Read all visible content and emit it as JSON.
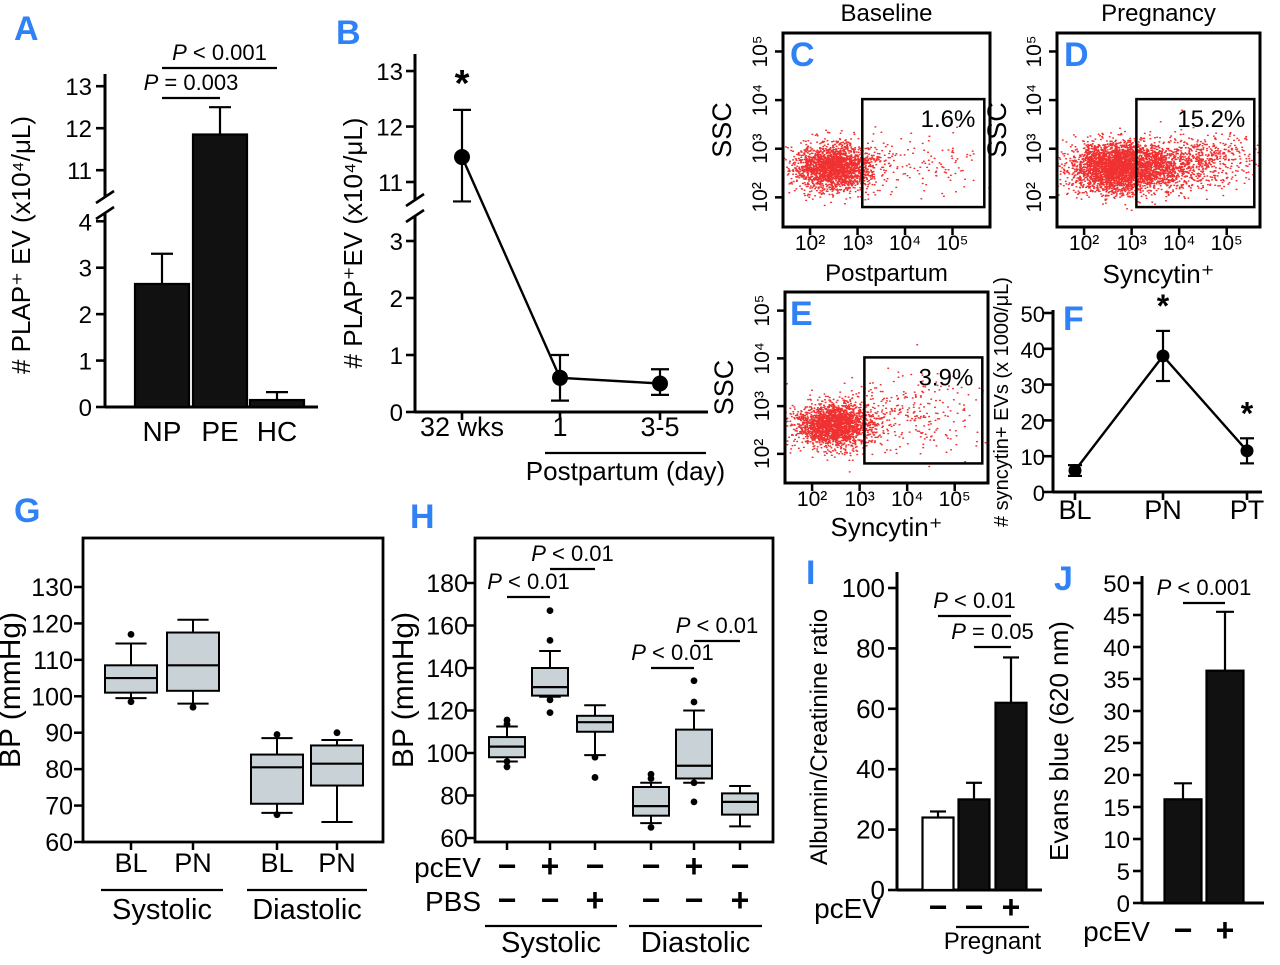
{
  "figure": {
    "background": "#ffffff",
    "accent_blue": "#2f82f5",
    "scatter_red": "#ee1515",
    "box_fill": "#c9d3d7",
    "ink": "#000000"
  },
  "chart_data": [
    {
      "id": "A",
      "panel_label": "A",
      "type": "bar",
      "ylabel": "# PLAP⁺ EV (x10⁴/μL)",
      "broken_y_axis": true,
      "y_ticks_lower": [
        0,
        1,
        2,
        3,
        4
      ],
      "y_ticks_upper": [
        11,
        12,
        13
      ],
      "categories": [
        "NP",
        "PE",
        "HC"
      ],
      "values": [
        2.65,
        11.85,
        0.15
      ],
      "errors_up": [
        0.65,
        0.65,
        0.17
      ],
      "bar_fills": [
        "#111111",
        "#111111",
        "#111111"
      ],
      "significance": [
        {
          "i": 0,
          "j": 2,
          "label": "P < 0.001"
        },
        {
          "i": 0,
          "j": 1,
          "label": "P = 0.003"
        }
      ]
    },
    {
      "id": "B",
      "panel_label": "B",
      "type": "line-broken",
      "ylabel": "# PLAP⁺EV (x10⁴/μL)",
      "broken_y_axis": true,
      "y_ticks_lower": [
        0,
        1,
        2,
        3
      ],
      "y_ticks_upper": [
        11,
        12,
        13
      ],
      "categories": [
        "32 wks",
        "1",
        "3-5"
      ],
      "values": [
        11.45,
        0.6,
        0.5
      ],
      "err_low": [
        0.8,
        0.4,
        0.2
      ],
      "err_high": [
        0.85,
        0.4,
        0.25
      ],
      "asterisks": [
        0
      ],
      "x_bracket": {
        "label": "Postpartum (day)",
        "from": 1,
        "to": 2
      }
    },
    {
      "id": "C",
      "panel_label": "C",
      "type": "flow",
      "title": "Baseline",
      "ylabel": "SSC",
      "xlabel": "",
      "x_ticks": [
        "10²",
        "10³",
        "10⁴",
        "10⁵"
      ],
      "y_ticks": [
        "10²",
        "10³",
        "10⁴",
        "10⁵"
      ],
      "gate_percent": "1.6%",
      "seed": 11,
      "clusters": [
        {
          "n": 2200,
          "mx": 2.5,
          "sx": 0.42,
          "my": 2.62,
          "sy": 0.24
        },
        {
          "n": 150,
          "mx": 4.3,
          "sx": 0.85,
          "my": 2.7,
          "sy": 0.3
        }
      ]
    },
    {
      "id": "D",
      "panel_label": "D",
      "type": "flow",
      "title": "Pregnancy",
      "ylabel": "SSC",
      "xlabel": "Syncytin⁺",
      "x_ticks": [
        "10²",
        "10³",
        "10⁴",
        "10⁵"
      ],
      "y_ticks": [
        "10²",
        "10³",
        "10⁴",
        "10⁵"
      ],
      "gate_percent": "15.2%",
      "seed": 22,
      "clusters": [
        {
          "n": 2000,
          "mx": 2.55,
          "sx": 0.42,
          "my": 2.6,
          "sy": 0.25
        },
        {
          "n": 1800,
          "mx": 3.25,
          "sx": 0.6,
          "my": 2.63,
          "sy": 0.26
        },
        {
          "n": 420,
          "mx": 4.6,
          "sx": 0.55,
          "my": 2.75,
          "sy": 0.3
        }
      ]
    },
    {
      "id": "E",
      "panel_label": "E",
      "type": "flow",
      "title": "Postpartum",
      "ylabel": "SSC",
      "xlabel": "Syncytin⁺",
      "x_ticks": [
        "10²",
        "10³",
        "10⁴",
        "10⁵"
      ],
      "y_ticks": [
        "10²",
        "10³",
        "10⁴",
        "10⁵"
      ],
      "gate_percent": "3.9%",
      "seed": 33,
      "clusters": [
        {
          "n": 2100,
          "mx": 2.45,
          "sx": 0.4,
          "my": 2.6,
          "sy": 0.23
        },
        {
          "n": 300,
          "mx": 3.9,
          "sx": 0.85,
          "my": 2.85,
          "sy": 0.4
        }
      ]
    },
    {
      "id": "F",
      "panel_label": "F",
      "type": "line",
      "ylabel": "# syncytin+ EVs (x 1000/μL)",
      "y_ticks": [
        0,
        10,
        20,
        30,
        40,
        50
      ],
      "categories": [
        "BL",
        "PN",
        "PT"
      ],
      "values": [
        6,
        38,
        11.5
      ],
      "err_low": [
        1.5,
        7,
        3.5
      ],
      "err_high": [
        1.5,
        7,
        3.5
      ],
      "asterisks": [
        1,
        2
      ]
    },
    {
      "id": "G",
      "panel_label": "G",
      "type": "box",
      "ylabel": "BP (mmHg)",
      "y_ticks": [
        60,
        70,
        80,
        90,
        100,
        110,
        120,
        130
      ],
      "boxes": [
        {
          "label": "BL",
          "whisker_low": 99.5,
          "q1": 101,
          "median": 105,
          "q3": 108.5,
          "whisker_high": 114.5,
          "outliers": [
            117,
            98.5
          ]
        },
        {
          "label": "PN",
          "whisker_low": 98,
          "q1": 101.5,
          "median": 108.5,
          "q3": 117.5,
          "whisker_high": 121,
          "outliers": [
            97
          ]
        },
        {
          "label": "BL",
          "whisker_low": 68,
          "q1": 70.5,
          "median": 80.5,
          "q3": 84,
          "whisker_high": 88.5,
          "outliers": [
            89.5,
            67.5
          ]
        },
        {
          "label": "PN",
          "whisker_low": 65.5,
          "q1": 75.5,
          "median": 81.5,
          "q3": 86.5,
          "whisker_high": 88,
          "outliers": [
            90
          ]
        }
      ],
      "groups": [
        {
          "label": "Systolic",
          "from": 0,
          "to": 1
        },
        {
          "label": "Diastolic",
          "from": 2,
          "to": 3
        }
      ]
    },
    {
      "id": "H",
      "panel_label": "H",
      "type": "box",
      "ylabel": "BP (mmHg)",
      "y_ticks": [
        60,
        80,
        100,
        120,
        140,
        160,
        180
      ],
      "boxes": [
        {
          "whisker_low": 96,
          "q1": 98,
          "median": 103,
          "q3": 107.5,
          "whisker_high": 112.5,
          "outliers": [
            115.5,
            113.5,
            96,
            93.5
          ]
        },
        {
          "whisker_low": 126.5,
          "q1": 127,
          "median": 131,
          "q3": 140,
          "whisker_high": 148,
          "outliers": [
            167,
            153,
            125,
            119
          ]
        },
        {
          "whisker_low": 99,
          "q1": 110,
          "median": 114.5,
          "q3": 117.5,
          "whisker_high": 122.5,
          "outliers": [
            98,
            88.5
          ]
        },
        {
          "whisker_low": 67,
          "q1": 70.5,
          "median": 75,
          "q3": 84,
          "whisker_high": 86,
          "outliers": [
            90,
            88,
            65
          ]
        },
        {
          "whisker_low": 86,
          "q1": 88,
          "median": 94,
          "q3": 111,
          "whisker_high": 120,
          "outliers": [
            134,
            124,
            86,
            77
          ]
        },
        {
          "whisker_low": 65.5,
          "q1": 71,
          "median": 77,
          "q3": 81,
          "whisker_high": 84.5,
          "outliers": []
        }
      ],
      "rows": [
        {
          "label": "pcEV",
          "symbols": [
            "−",
            "+",
            "−",
            "−",
            "+",
            "−"
          ]
        },
        {
          "label": "PBS",
          "symbols": [
            "−",
            "−",
            "+",
            "−",
            "−",
            "+"
          ]
        }
      ],
      "groups": [
        {
          "label": "Systolic",
          "from": 0,
          "to": 2
        },
        {
          "label": "Diastolic",
          "from": 3,
          "to": 5
        }
      ],
      "significance": [
        {
          "i": 0,
          "j": 1,
          "label": "P < 0.01"
        },
        {
          "i": 1,
          "j": 2,
          "label": "P < 0.01"
        },
        {
          "i": 3,
          "j": 4,
          "label": "P < 0.01"
        },
        {
          "i": 4,
          "j": 5,
          "label": "P < 0.01"
        }
      ]
    },
    {
      "id": "I",
      "panel_label": "I",
      "type": "bar",
      "ylabel": "Albumin/Creatinine ratio",
      "y_ticks": [
        0,
        20,
        40,
        60,
        80,
        100
      ],
      "values": [
        24,
        30,
        62
      ],
      "errors_up": [
        2,
        5.5,
        15
      ],
      "bar_fills": [
        "#ffffff",
        "#111111",
        "#111111"
      ],
      "rows": [
        {
          "label": "pcEV",
          "symbols": [
            "−",
            "−",
            "+"
          ]
        }
      ],
      "x_bracket": {
        "label": "Pregnant",
        "from": 1,
        "to": 2
      },
      "significance": [
        {
          "i": 0,
          "j": 2,
          "label": "P < 0.01"
        },
        {
          "i": 1,
          "j": 2,
          "label": "P = 0.05"
        }
      ]
    },
    {
      "id": "J",
      "panel_label": "J",
      "type": "bar",
      "ylabel": "Evans blue (620 nm)",
      "y_ticks": [
        0,
        5,
        10,
        15,
        20,
        25,
        30,
        35,
        40,
        45,
        50
      ],
      "values": [
        16.2,
        36.3
      ],
      "errors_up": [
        2.5,
        9.2
      ],
      "bar_fills": [
        "#111111",
        "#111111"
      ],
      "rows": [
        {
          "label": "pcEV",
          "symbols": [
            "−",
            "+"
          ]
        }
      ],
      "significance": [
        {
          "i": 0,
          "j": 1,
          "label": "P < 0.001"
        }
      ]
    }
  ]
}
